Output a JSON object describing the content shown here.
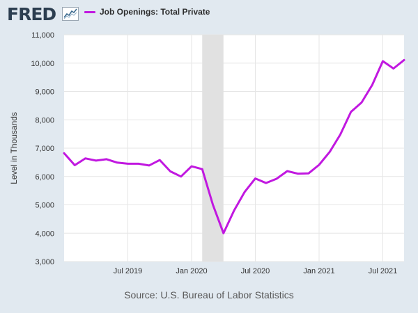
{
  "header": {
    "logo_text": "FRED",
    "legend_label": "Job Openings: Total Private"
  },
  "footer": {
    "source": "Source: U.S. Bureau of Labor Statistics"
  },
  "colors": {
    "series": "#c118e0",
    "recession": "#e1e1e1",
    "background": "#e1e9f0",
    "plot": "#ffffff",
    "grid": "#e6e6e6"
  },
  "chart_data": {
    "type": "line",
    "title": "Job Openings: Total Private",
    "xlabel": "",
    "ylabel": "Level in Thousands",
    "ylim": [
      3000,
      11000
    ],
    "yticks": [
      3000,
      4000,
      5000,
      6000,
      7000,
      8000,
      9000,
      10000,
      11000
    ],
    "ytick_labels": [
      "3,000",
      "4,000",
      "5,000",
      "6,000",
      "7,000",
      "8,000",
      "9,000",
      "10,000",
      "11,000"
    ],
    "xlim": [
      "2019-01",
      "2021-09"
    ],
    "xticks": [
      {
        "date": "2019-07",
        "label": "Jul 2019"
      },
      {
        "date": "2020-01",
        "label": "Jan 2020"
      },
      {
        "date": "2020-07",
        "label": "Jul 2020"
      },
      {
        "date": "2021-01",
        "label": "Jan 2021"
      },
      {
        "date": "2021-07",
        "label": "Jul 2021"
      }
    ],
    "grid": true,
    "recession": {
      "start": "2020-02",
      "end": "2020-04"
    },
    "series": [
      {
        "name": "Job Openings: Total Private",
        "x": [
          "2019-01",
          "2019-02",
          "2019-03",
          "2019-04",
          "2019-05",
          "2019-06",
          "2019-07",
          "2019-08",
          "2019-09",
          "2019-10",
          "2019-11",
          "2019-12",
          "2020-01",
          "2020-02",
          "2020-03",
          "2020-04",
          "2020-05",
          "2020-06",
          "2020-07",
          "2020-08",
          "2020-09",
          "2020-10",
          "2020-11",
          "2020-12",
          "2021-01",
          "2021-02",
          "2021-03",
          "2021-04",
          "2021-05",
          "2021-06",
          "2021-07",
          "2021-08",
          "2021-09"
        ],
        "values": [
          6820,
          6400,
          6640,
          6560,
          6610,
          6490,
          6450,
          6450,
          6390,
          6580,
          6180,
          6000,
          6360,
          6260,
          5010,
          4000,
          4800,
          5460,
          5930,
          5770,
          5920,
          6190,
          6100,
          6110,
          6410,
          6870,
          7480,
          8280,
          8610,
          9230,
          10070,
          9810,
          10110
        ]
      }
    ]
  }
}
